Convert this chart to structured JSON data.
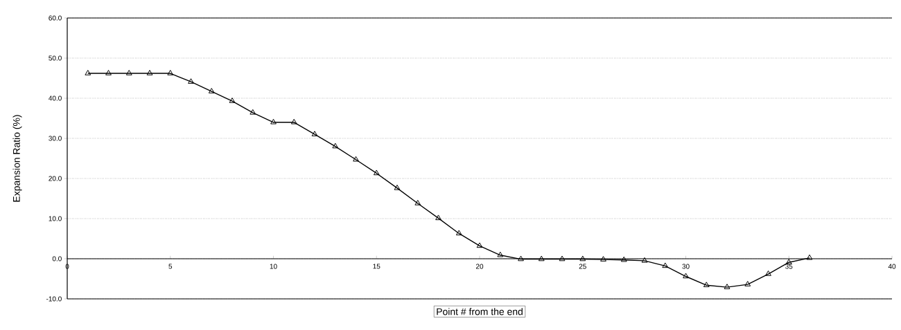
{
  "chart_data": {
    "type": "line",
    "xlabel": "Point # from the end",
    "ylabel": "Expansion Ratio (%)",
    "x": [
      1,
      2,
      3,
      4,
      5,
      6,
      7,
      8,
      9,
      10,
      11,
      12,
      13,
      14,
      15,
      16,
      17,
      18,
      19,
      20,
      21,
      22,
      23,
      24,
      25,
      26,
      27,
      28,
      29,
      30,
      31,
      32,
      33,
      34,
      35,
      36
    ],
    "values": [
      46.2,
      46.2,
      46.2,
      46.2,
      46.2,
      44.1,
      41.7,
      39.3,
      36.4,
      34.0,
      34.0,
      31.0,
      28.0,
      24.7,
      21.3,
      17.6,
      13.8,
      10.1,
      6.3,
      3.2,
      0.9,
      -0.1,
      -0.1,
      -0.1,
      -0.1,
      -0.2,
      -0.3,
      -0.5,
      -1.8,
      -4.4,
      -6.6,
      -7.1,
      -6.4,
      -3.8,
      -0.9,
      0.2
    ],
    "color": "#000000",
    "marker": "triangle",
    "line_style": "solid",
    "grid": "y",
    "xlim": [
      0,
      40
    ],
    "xticks": [
      0,
      5,
      10,
      15,
      20,
      25,
      30,
      35,
      40
    ],
    "ylim": [
      -10,
      60
    ],
    "yticks": [
      {
        "value": -10,
        "label": "-10.0"
      },
      {
        "value": 0,
        "label": "0.0"
      },
      {
        "value": 10,
        "label": "10.0"
      },
      {
        "value": 20,
        "label": "20.0"
      },
      {
        "value": 30,
        "label": "30.0"
      },
      {
        "value": 40,
        "label": "40.0"
      },
      {
        "value": 50,
        "label": "50.0"
      },
      {
        "value": 60,
        "label": "60.0"
      }
    ]
  }
}
